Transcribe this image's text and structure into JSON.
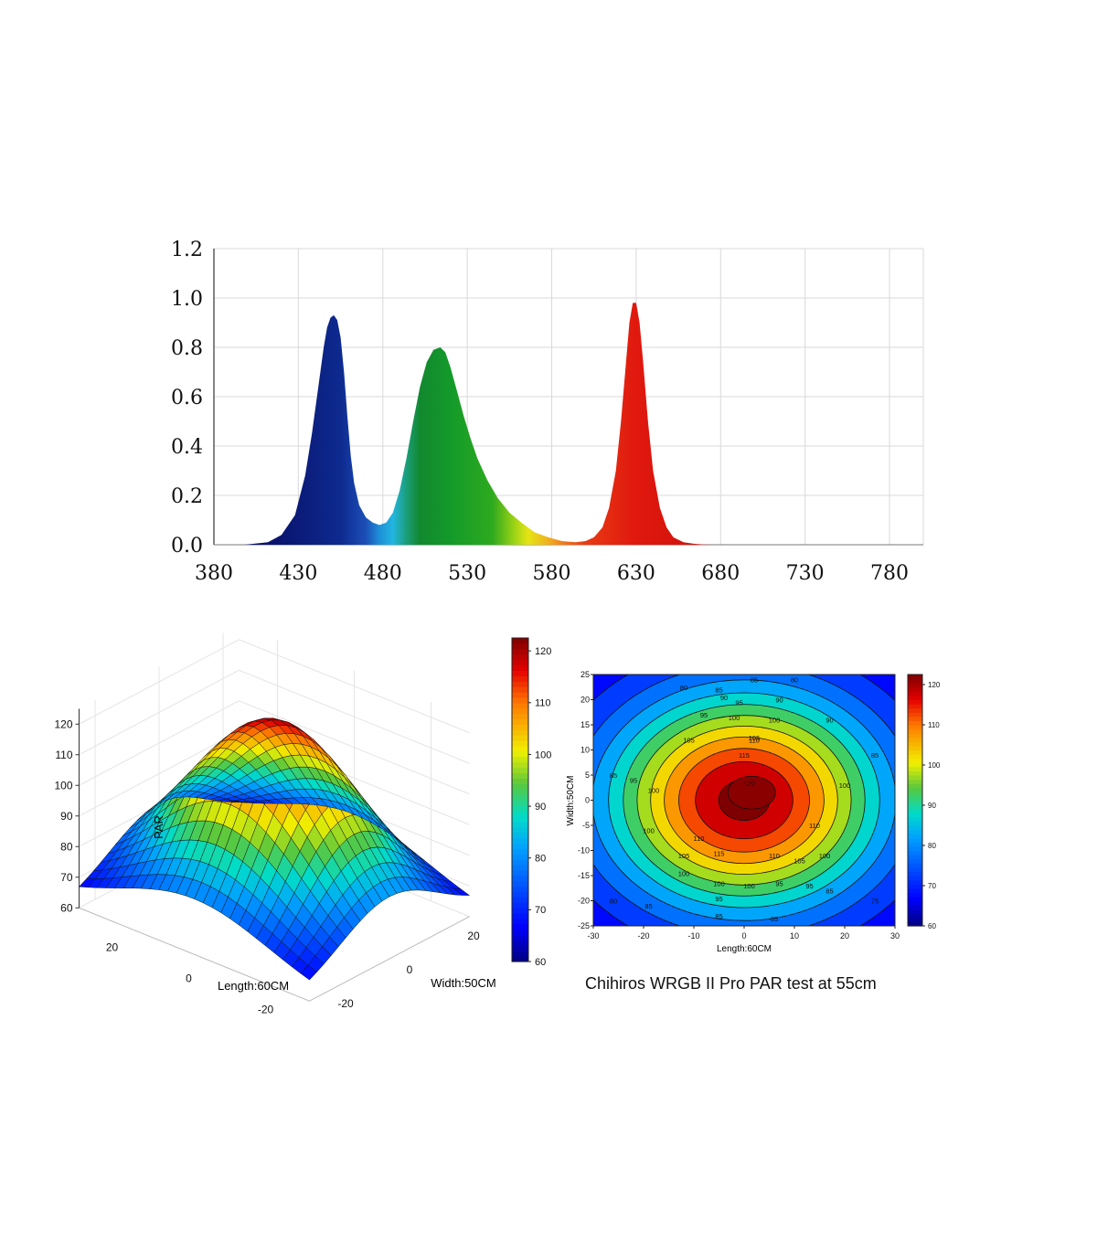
{
  "caption": "Chihiros WRGB II Pro PAR test at 55cm",
  "chart_data": [
    {
      "type": "area",
      "title": "",
      "xlabel": "",
      "ylabel": "",
      "xlim": [
        380,
        800
      ],
      "ylim": [
        0,
        1.2
      ],
      "x_ticks": [
        "380",
        "430",
        "480",
        "530",
        "580",
        "630",
        "680",
        "730",
        "780"
      ],
      "y_ticks": [
        "0.0",
        "0.2",
        "0.4",
        "0.6",
        "0.8",
        "1.0",
        "1.2"
      ],
      "grid": true,
      "fill": "wavelength-colored",
      "series": [
        {
          "x": [
            398,
            405,
            412,
            420,
            428,
            434,
            438,
            442,
            445,
            447,
            449,
            451,
            453,
            455,
            457,
            459,
            461,
            463,
            466,
            470,
            474,
            478,
            482,
            486,
            490,
            494,
            498,
            502,
            506,
            510,
            514,
            517,
            520,
            524,
            528,
            532,
            536,
            542,
            548,
            555,
            562,
            570,
            578,
            586,
            594,
            600,
            605,
            610,
            614,
            618,
            621,
            624,
            626,
            628,
            630,
            632,
            634,
            637,
            640,
            644,
            648,
            652,
            658,
            664,
            670,
            676
          ],
          "y": [
            0.0,
            0.005,
            0.01,
            0.04,
            0.12,
            0.28,
            0.45,
            0.65,
            0.8,
            0.88,
            0.92,
            0.93,
            0.91,
            0.84,
            0.7,
            0.52,
            0.36,
            0.25,
            0.16,
            0.11,
            0.09,
            0.08,
            0.09,
            0.13,
            0.22,
            0.35,
            0.5,
            0.64,
            0.74,
            0.79,
            0.8,
            0.78,
            0.72,
            0.62,
            0.52,
            0.43,
            0.35,
            0.26,
            0.19,
            0.13,
            0.09,
            0.05,
            0.03,
            0.015,
            0.01,
            0.015,
            0.03,
            0.07,
            0.15,
            0.3,
            0.5,
            0.74,
            0.9,
            0.98,
            0.98,
            0.9,
            0.75,
            0.5,
            0.3,
            0.15,
            0.07,
            0.03,
            0.01,
            0.004,
            0.001,
            0.0
          ]
        }
      ]
    },
    {
      "type": "surface3d",
      "title": "",
      "xlabel": "Length:60CM",
      "ylabel": "Width:50CM",
      "zlabel": "PAR",
      "x_ticks": [
        "20",
        "0",
        "-20"
      ],
      "y_ticks": [
        "-20",
        "0",
        "20"
      ],
      "z_ticks": [
        "60",
        "70",
        "80",
        "90",
        "100",
        "110",
        "120"
      ],
      "zlim": [
        60,
        125
      ],
      "colorbar_ticks": [
        "60",
        "70",
        "80",
        "90",
        "100",
        "110",
        "120"
      ],
      "colormap": [
        "#00007f",
        "#0000ff",
        "#0080ff",
        "#00ffff",
        "#80ff80",
        "#ffff00",
        "#ff8000",
        "#ff0000",
        "#7f0000"
      ]
    },
    {
      "type": "heatmap",
      "title": "",
      "xlabel": "Length:60CM",
      "ylabel": "Width:50CM",
      "xlim": [
        -30,
        30
      ],
      "ylim": [
        -25,
        25
      ],
      "x_ticks": [
        "-30",
        "-20",
        "-10",
        "0",
        "10",
        "20",
        "30"
      ],
      "y_ticks": [
        "-25",
        "-20",
        "-15",
        "-10",
        "-5",
        "0",
        "5",
        "10",
        "15",
        "20",
        "25"
      ],
      "colorbar_ticks": [
        "60",
        "70",
        "80",
        "90",
        "100",
        "110",
        "120"
      ],
      "contour_levels": [
        60,
        65,
        70,
        75,
        80,
        85,
        90,
        95,
        100,
        105,
        110,
        115,
        120
      ],
      "contour_labels": [
        {
          "x": -12,
          "y": 22.5,
          "label": "80"
        },
        {
          "x": -5,
          "y": 22,
          "label": "85"
        },
        {
          "x": 2,
          "y": 24,
          "label": "85"
        },
        {
          "x": 10,
          "y": 24,
          "label": "80"
        },
        {
          "x": -4,
          "y": 20.5,
          "label": "90"
        },
        {
          "x": 7,
          "y": 20,
          "label": "90"
        },
        {
          "x": -1,
          "y": 19.5,
          "label": "95"
        },
        {
          "x": -8,
          "y": 17,
          "label": "95"
        },
        {
          "x": -2,
          "y": 16.5,
          "label": "100"
        },
        {
          "x": 6,
          "y": 16,
          "label": "100"
        },
        {
          "x": 2,
          "y": 12.5,
          "label": "105"
        },
        {
          "x": -11,
          "y": 12,
          "label": "105"
        },
        {
          "x": 2,
          "y": 12,
          "label": "110"
        },
        {
          "x": 0,
          "y": 9,
          "label": "115"
        },
        {
          "x": 1,
          "y": 3.5,
          "label": "120"
        },
        {
          "x": -22,
          "y": 4,
          "label": "95"
        },
        {
          "x": -18,
          "y": 2,
          "label": "100"
        },
        {
          "x": 20,
          "y": 3,
          "label": "100"
        },
        {
          "x": 14,
          "y": -5,
          "label": "110"
        },
        {
          "x": -9,
          "y": -7.5,
          "label": "110"
        },
        {
          "x": -19,
          "y": -6,
          "label": "100"
        },
        {
          "x": -5,
          "y": -10.5,
          "label": "115"
        },
        {
          "x": 6,
          "y": -11,
          "label": "110"
        },
        {
          "x": -12,
          "y": -11,
          "label": "105"
        },
        {
          "x": 11,
          "y": -12,
          "label": "105"
        },
        {
          "x": 16,
          "y": -11,
          "label": "100"
        },
        {
          "x": -12,
          "y": -14.5,
          "label": "100"
        },
        {
          "x": -5,
          "y": -16.5,
          "label": "100"
        },
        {
          "x": 1,
          "y": -17,
          "label": "100"
        },
        {
          "x": -5,
          "y": -19.5,
          "label": "95"
        },
        {
          "x": 7,
          "y": -16.5,
          "label": "95"
        },
        {
          "x": 13,
          "y": -17,
          "label": "95"
        },
        {
          "x": 17,
          "y": -18,
          "label": "85"
        },
        {
          "x": 26,
          "y": -20,
          "label": "75"
        },
        {
          "x": -26,
          "y": -20,
          "label": "80"
        },
        {
          "x": -19,
          "y": -21,
          "label": "85"
        },
        {
          "x": -5,
          "y": -23,
          "label": "85"
        },
        {
          "x": 6,
          "y": -23.5,
          "label": "85"
        },
        {
          "x": -26,
          "y": 5,
          "label": "85"
        },
        {
          "x": 26,
          "y": 9,
          "label": "85"
        },
        {
          "x": 17,
          "y": 16,
          "label": "90"
        }
      ]
    }
  ]
}
